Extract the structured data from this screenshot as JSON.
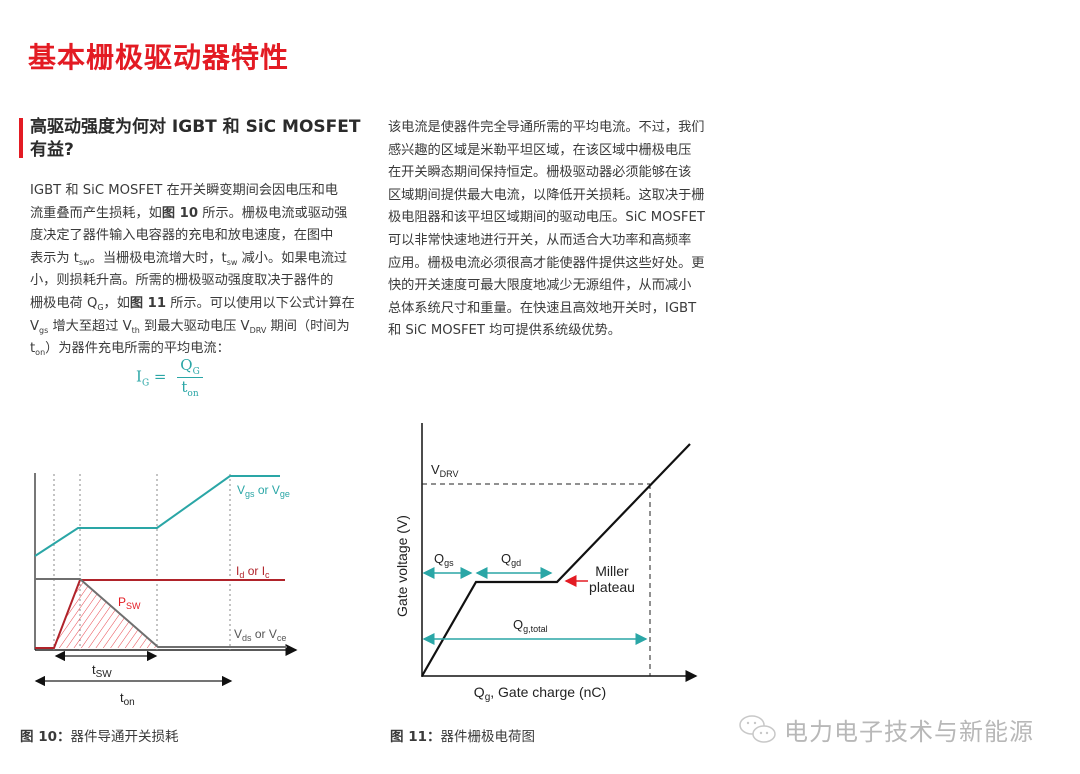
{
  "page_title": "基本栅极驱动器特性",
  "section_heading": [
    "高驱动强度为何对 IGBT 和 SiC MOSFET",
    "有益?"
  ],
  "left_paragraph": [
    [
      {
        "t": "IGBT 和 SiC MOSFET 在开关瞬变期间会因电压和电"
      }
    ],
    [
      {
        "t": "流重叠而产生损耗，如"
      },
      {
        "t": "图 10",
        "s": "b"
      },
      {
        "t": " 所示。栅极电流或驱动强"
      }
    ],
    [
      {
        "t": "度决定了器件输入电容器的充电和放电速度，在图中"
      }
    ],
    [
      {
        "t": "表示为 t"
      },
      {
        "t": "sw",
        "s": "sub"
      },
      {
        "t": "。当栅极电流增大时，t"
      },
      {
        "t": "sw",
        "s": "sub"
      },
      {
        "t": " 减小。如果电流过"
      }
    ],
    [
      {
        "t": "小，则损耗升高。所需的栅极驱动强度取决于器件的"
      }
    ],
    [
      {
        "t": "栅极电荷 Q"
      },
      {
        "t": "G",
        "s": "sub"
      },
      {
        "t": "，如"
      },
      {
        "t": "图 11",
        "s": "b"
      },
      {
        "t": " 所示。可以使用以下公式计算在"
      }
    ],
    [
      {
        "t": "V"
      },
      {
        "t": "gs",
        "s": "sub"
      },
      {
        "t": " 增大至超过 V"
      },
      {
        "t": "th",
        "s": "sub"
      },
      {
        "t": " 到最大驱动电压 V"
      },
      {
        "t": "DRV",
        "s": "sub"
      },
      {
        "t": " 期间（时间为"
      }
    ],
    [
      {
        "t": "t"
      },
      {
        "t": "on",
        "s": "sub"
      },
      {
        "t": "）为器件充电所需的平均电流："
      }
    ]
  ],
  "formula": {
    "lhs": "I",
    "lhs_sub": "G",
    "eq": " =",
    "num": "Q",
    "num_sub": "G",
    "den": "t",
    "den_sub": "on"
  },
  "right_paragraph": [
    [
      {
        "t": "该电流是使器件完全导通所需的平均电流。不过，我们"
      }
    ],
    [
      {
        "t": "感兴趣的区域是米勒平坦区域，在该区域中栅极电压"
      }
    ],
    [
      {
        "t": "在开关瞬态期间保持恒定。栅极驱动器必须能够在该"
      }
    ],
    [
      {
        "t": "区域期间提供最大电流，以降低开关损耗。这取决于栅"
      }
    ],
    [
      {
        "t": "极电阻器和该平坦区域期间的驱动电压。SiC MOSFET"
      }
    ],
    [
      {
        "t": "可以非常快速地进行开关，从而适合大功率和高频率"
      }
    ],
    [
      {
        "t": "应用。栅极电流必须很高才能使器件提供这些好处。更"
      }
    ],
    [
      {
        "t": "快的开关速度可最大限度地减少无源组件，从而减小"
      }
    ],
    [
      {
        "t": "总体系统尺寸和重量。在快速且高效地开关时，IGBT"
      }
    ],
    [
      {
        "t": "和 SiC MOSFET 均可提供系统级优势。"
      }
    ]
  ],
  "figure10": {
    "vgs": {
      "main": "V",
      "sub1": "gs",
      "mid": " or V",
      "sub2": "ge"
    },
    "id": {
      "main": "I",
      "sub1": "d",
      "mid": " or I",
      "sub2": "c"
    },
    "psw": {
      "main": "P",
      "sub": "SW"
    },
    "vds": {
      "main": "V",
      "sub1": "ds",
      "mid": " or V",
      "sub2": "ce"
    },
    "tsw": {
      "main": "t",
      "sub": "SW"
    },
    "ton": {
      "main": "t",
      "sub": "on"
    },
    "caption_prefix": "图 10：",
    "caption": "器件导通开关损耗"
  },
  "figure11": {
    "vdrv": {
      "main": "V",
      "sub": "DRV"
    },
    "qgs": {
      "main": "Q",
      "sub": "gs"
    },
    "qgd": {
      "main": "Q",
      "sub": "gd"
    },
    "qtotal": {
      "main": "Q",
      "sub": "g,total"
    },
    "miller": [
      "Miller",
      "plateau"
    ],
    "ylabel": "Gate voltage (V)",
    "xlabel": {
      "main": "Q",
      "sub": "g",
      "rest": ", Gate charge (nC)"
    },
    "caption_prefix": "图 11：",
    "caption": "器件栅极电荷图"
  },
  "watermark": "电力电子技术与新能源",
  "colors": {
    "accent": "#e31b23",
    "teal": "#2aa6a6",
    "dark_red": "#b0232a",
    "gray": "#707070"
  }
}
